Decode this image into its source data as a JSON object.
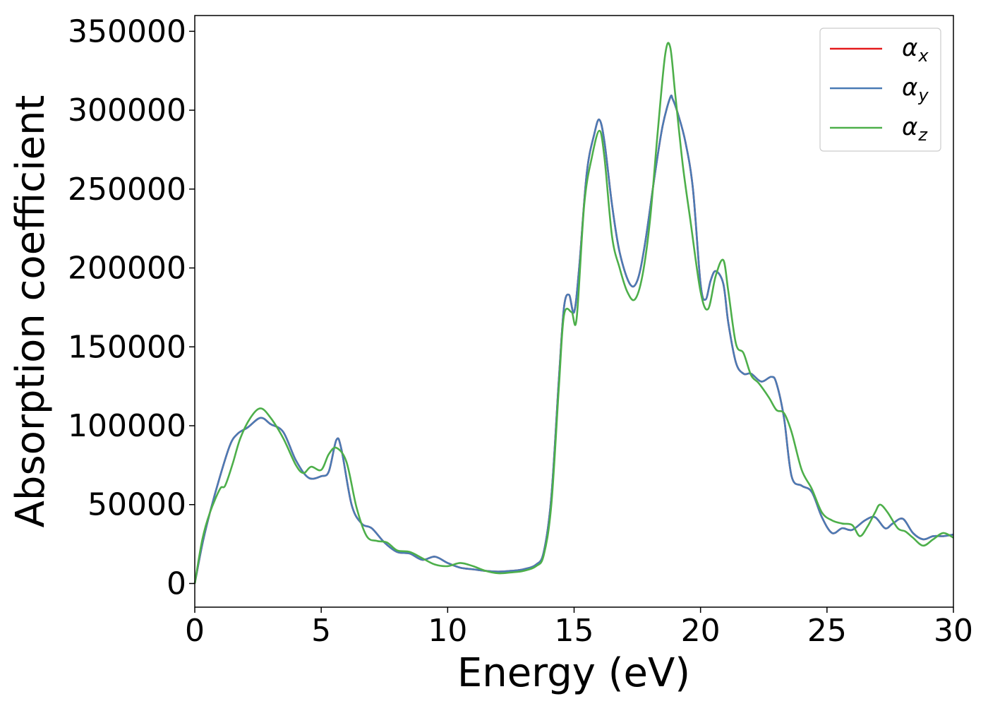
{
  "chart_data": {
    "type": "line",
    "xlabel": "Energy (eV)",
    "ylabel": "Absorption coefficient",
    "xlim": [
      0,
      30
    ],
    "ylim": [
      -15000,
      360000
    ],
    "x_ticks": [
      0,
      5,
      10,
      15,
      20,
      25,
      30
    ],
    "y_ticks": [
      0,
      50000,
      100000,
      150000,
      200000,
      250000,
      300000,
      350000
    ],
    "grid": false,
    "legend_position": "top-right",
    "series": [
      {
        "name": "α_x",
        "legend_main": "α",
        "legend_sub": "x",
        "color": "#e41a1c",
        "x": [
          0,
          0.3,
          0.6,
          1.0,
          1.4,
          1.7,
          2.1,
          2.6,
          3.0,
          3.5,
          4.0,
          4.5,
          5.0,
          5.3,
          5.6,
          5.8,
          6.2,
          6.6,
          7.0,
          7.5,
          8.0,
          8.5,
          9.0,
          9.5,
          10.0,
          10.5,
          11.0,
          11.5,
          12.0,
          12.5,
          13.0,
          13.5,
          13.8,
          14.1,
          14.4,
          14.6,
          14.8,
          15.0,
          15.2,
          15.5,
          15.8,
          16.0,
          16.2,
          16.5,
          16.8,
          17.2,
          17.5,
          17.8,
          18.2,
          18.5,
          18.8,
          18.9,
          19.1,
          19.4,
          19.7,
          20.0,
          20.2,
          20.4,
          20.6,
          20.9,
          21.1,
          21.4,
          21.7,
          22.0,
          22.4,
          22.8,
          23.0,
          23.3,
          23.6,
          24.0,
          24.4,
          24.8,
          25.2,
          25.6,
          26.0,
          26.5,
          26.9,
          27.3,
          27.6,
          28.0,
          28.4,
          28.8,
          29.2,
          29.6,
          30.0
        ],
        "values": [
          0,
          25000,
          45000,
          68000,
          88000,
          95000,
          99000,
          105000,
          101000,
          96000,
          78000,
          67000,
          68000,
          71000,
          91000,
          85000,
          50000,
          38000,
          35000,
          26000,
          20000,
          19000,
          15000,
          17000,
          13000,
          10000,
          9000,
          8000,
          7500,
          8000,
          9000,
          12000,
          20000,
          55000,
          130000,
          175000,
          183000,
          172000,
          200000,
          260000,
          285000,
          294000,
          280000,
          240000,
          210000,
          190000,
          192000,
          215000,
          260000,
          290000,
          308000,
          307000,
          298000,
          280000,
          250000,
          190000,
          180000,
          192000,
          198000,
          190000,
          165000,
          140000,
          133000,
          133000,
          128000,
          131000,
          127000,
          105000,
          68000,
          62000,
          58000,
          42000,
          32000,
          35000,
          34000,
          40000,
          42000,
          35000,
          38000,
          41000,
          32000,
          28000,
          30000,
          30000,
          31000
        ]
      },
      {
        "name": "α_y",
        "legend_main": "α",
        "legend_sub": "y",
        "color": "#4a7bb5",
        "x": [
          0,
          0.3,
          0.6,
          1.0,
          1.4,
          1.7,
          2.1,
          2.6,
          3.0,
          3.5,
          4.0,
          4.5,
          5.0,
          5.3,
          5.6,
          5.8,
          6.2,
          6.6,
          7.0,
          7.5,
          8.0,
          8.5,
          9.0,
          9.5,
          10.0,
          10.5,
          11.0,
          11.5,
          12.0,
          12.5,
          13.0,
          13.5,
          13.8,
          14.1,
          14.4,
          14.6,
          14.8,
          15.0,
          15.2,
          15.5,
          15.8,
          16.0,
          16.2,
          16.5,
          16.8,
          17.2,
          17.5,
          17.8,
          18.2,
          18.5,
          18.8,
          18.9,
          19.1,
          19.4,
          19.7,
          20.0,
          20.2,
          20.4,
          20.6,
          20.9,
          21.1,
          21.4,
          21.7,
          22.0,
          22.4,
          22.8,
          23.0,
          23.3,
          23.6,
          24.0,
          24.4,
          24.8,
          25.2,
          25.6,
          26.0,
          26.5,
          26.9,
          27.3,
          27.6,
          28.0,
          28.4,
          28.8,
          29.2,
          29.6,
          30.0
        ],
        "values": [
          0,
          25000,
          45000,
          68000,
          88000,
          95000,
          99000,
          105000,
          101000,
          96000,
          78000,
          67000,
          68000,
          71000,
          91000,
          85000,
          50000,
          38000,
          35000,
          26000,
          20000,
          19000,
          15000,
          17000,
          13000,
          10000,
          9000,
          8000,
          7500,
          8000,
          9000,
          12000,
          20000,
          55000,
          130000,
          175000,
          183000,
          172000,
          200000,
          260000,
          285000,
          294000,
          280000,
          240000,
          210000,
          190000,
          192000,
          215000,
          260000,
          290000,
          308000,
          307000,
          298000,
          280000,
          250000,
          190000,
          180000,
          192000,
          198000,
          190000,
          165000,
          140000,
          133000,
          133000,
          128000,
          131000,
          127000,
          105000,
          68000,
          62000,
          58000,
          42000,
          32000,
          35000,
          34000,
          40000,
          42000,
          35000,
          38000,
          41000,
          32000,
          28000,
          30000,
          30000,
          31000
        ]
      },
      {
        "name": "α_z",
        "legend_main": "α",
        "legend_sub": "z",
        "color": "#4daf4a",
        "x": [
          0,
          0.3,
          0.6,
          1.0,
          1.2,
          1.5,
          1.8,
          2.2,
          2.6,
          3.0,
          3.5,
          4.0,
          4.3,
          4.6,
          5.0,
          5.3,
          5.6,
          6.0,
          6.4,
          6.8,
          7.2,
          7.6,
          8.0,
          8.5,
          9.0,
          9.5,
          10.0,
          10.5,
          11.0,
          11.5,
          12.0,
          12.5,
          13.0,
          13.5,
          13.8,
          14.1,
          14.4,
          14.6,
          14.9,
          15.1,
          15.4,
          15.7,
          16.0,
          16.2,
          16.5,
          16.8,
          17.1,
          17.4,
          17.7,
          18.0,
          18.3,
          18.6,
          18.8,
          19.0,
          19.3,
          19.6,
          20.0,
          20.3,
          20.6,
          20.9,
          21.1,
          21.4,
          21.7,
          22.0,
          22.3,
          22.7,
          23.0,
          23.3,
          23.6,
          24.0,
          24.4,
          24.8,
          25.2,
          25.6,
          26.0,
          26.3,
          26.6,
          26.9,
          27.1,
          27.4,
          27.8,
          28.1,
          28.4,
          28.8,
          29.2,
          29.6,
          30.0
        ],
        "values": [
          0,
          28000,
          45000,
          60000,
          62000,
          76000,
          92000,
          105000,
          111000,
          105000,
          92000,
          75000,
          70000,
          74000,
          72000,
          82000,
          86000,
          77000,
          48000,
          30000,
          27000,
          26000,
          21000,
          20000,
          16000,
          12000,
          11000,
          13000,
          11000,
          8000,
          6500,
          7000,
          8000,
          11000,
          18000,
          50000,
          125000,
          170000,
          172000,
          168000,
          240000,
          270000,
          287000,
          270000,
          220000,
          200000,
          185000,
          180000,
          195000,
          230000,
          285000,
          335000,
          340000,
          310000,
          265000,
          230000,
          185000,
          174000,
          195000,
          205000,
          185000,
          152000,
          146000,
          132000,
          127000,
          118000,
          110000,
          108000,
          96000,
          72000,
          60000,
          45000,
          40000,
          38000,
          37000,
          30000,
          36000,
          45000,
          50000,
          45000,
          35000,
          33000,
          29000,
          24000,
          28000,
          32000,
          29000
        ]
      }
    ]
  }
}
